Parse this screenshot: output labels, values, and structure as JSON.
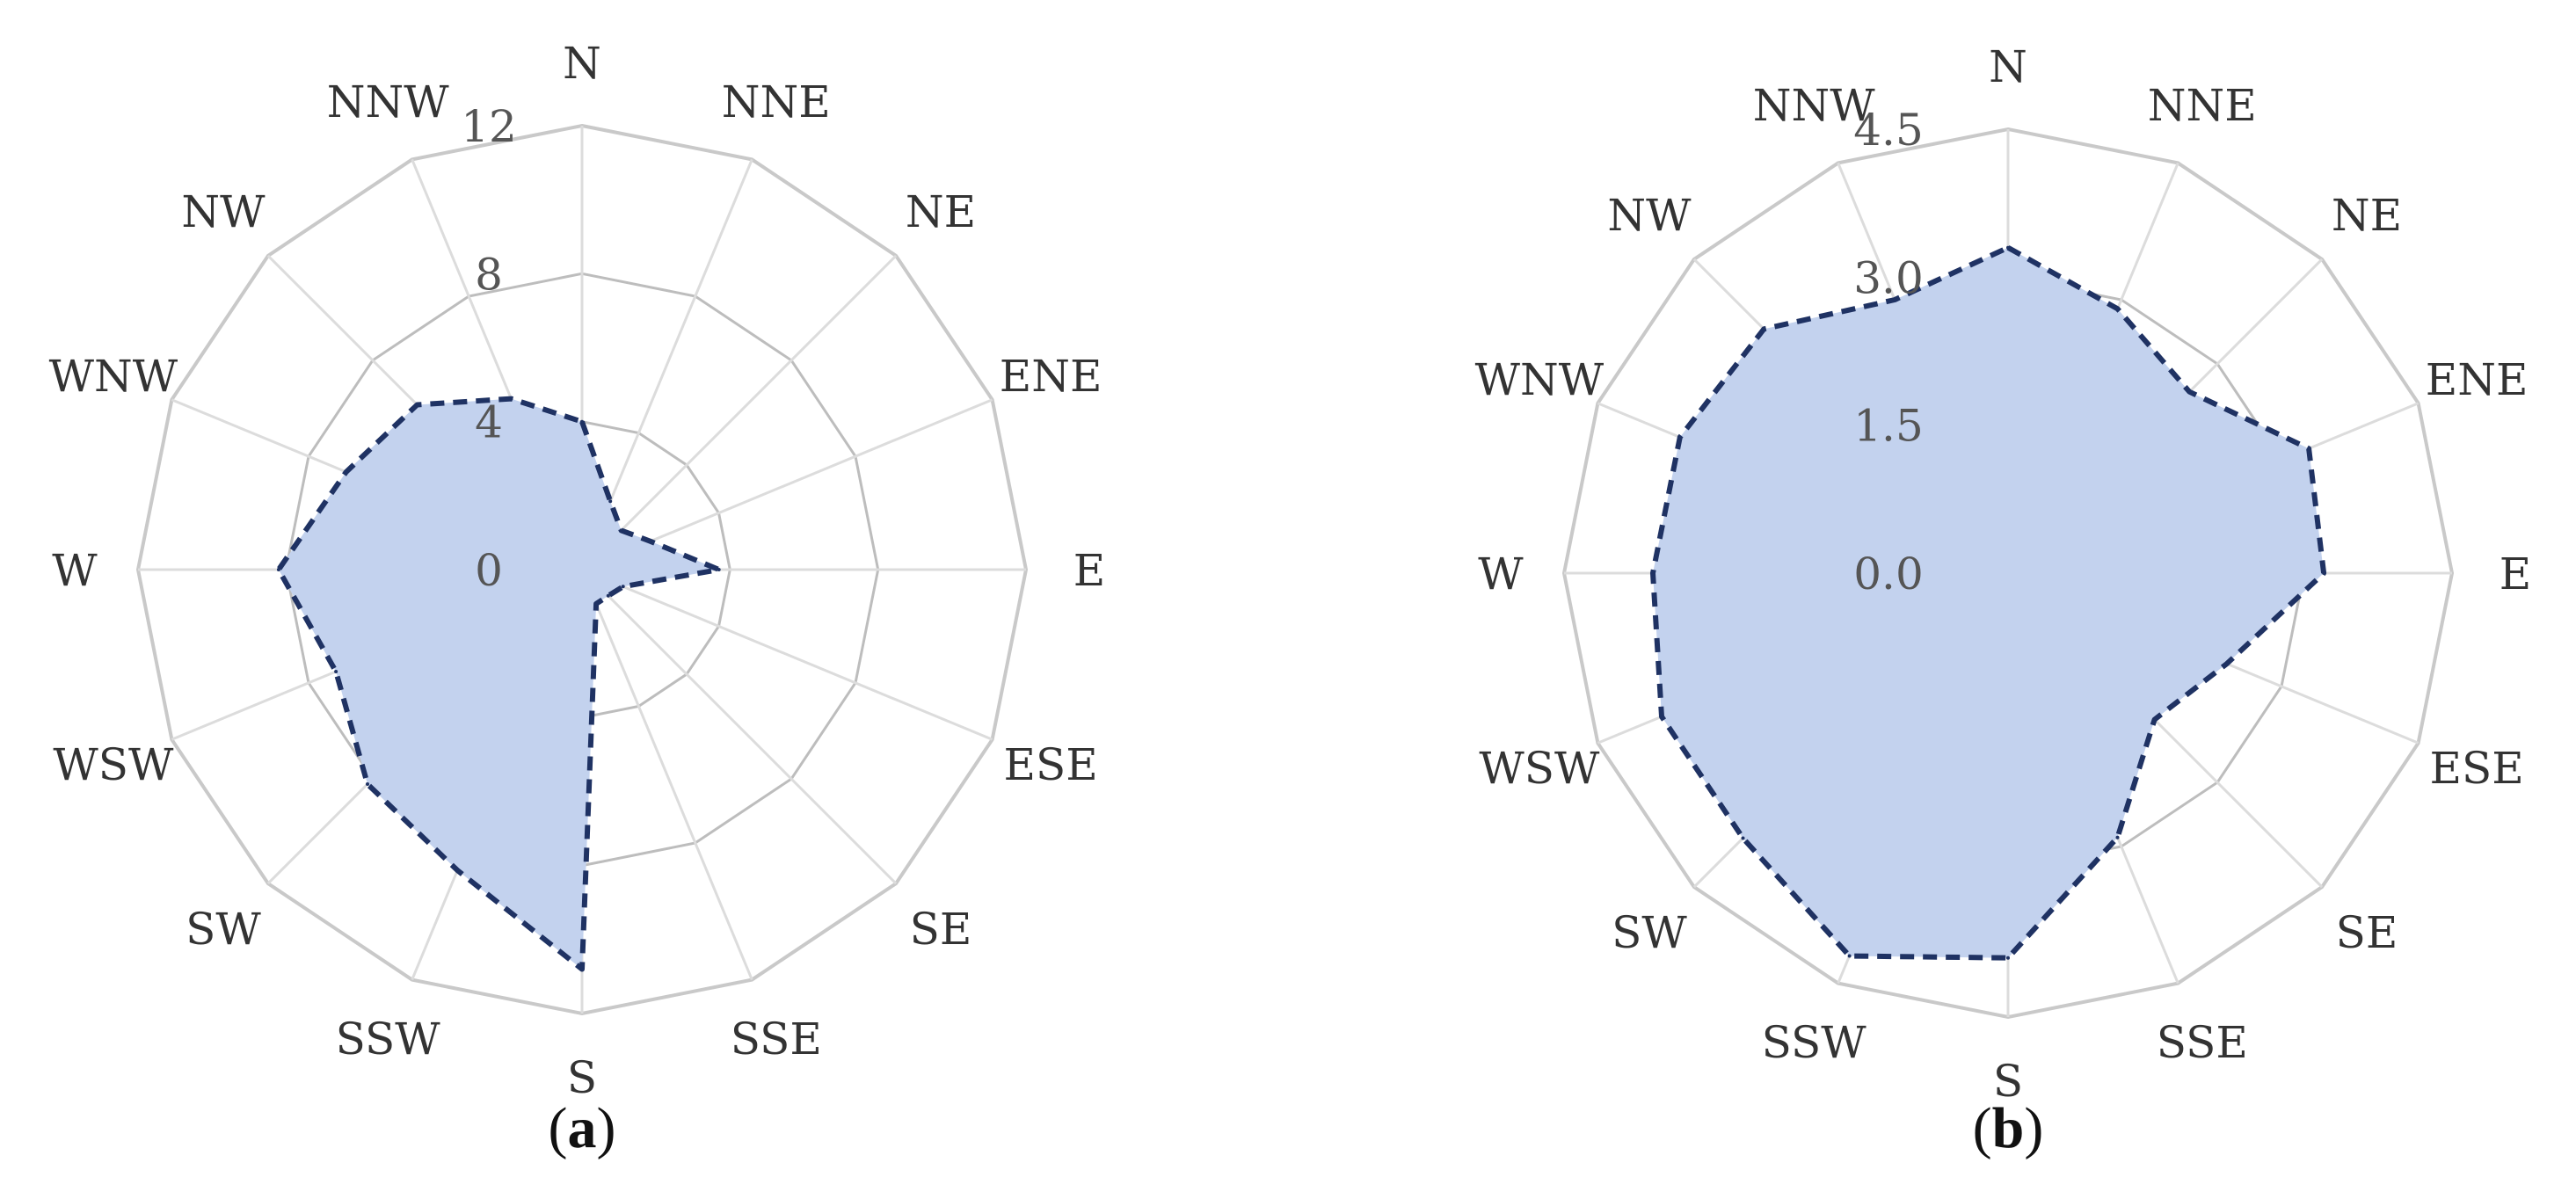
{
  "chart_data": [
    {
      "type": "radar",
      "panel_label": "a",
      "categories": [
        "N",
        "NNE",
        "NE",
        "ENE",
        "E",
        "ESE",
        "SE",
        "SSE",
        "S",
        "SSW",
        "SW",
        "WSW",
        "W",
        "WNW",
        "NW",
        "NNW"
      ],
      "ticks": [
        "0",
        "4",
        "8",
        "12"
      ],
      "rmax": 12,
      "values": [
        4.0,
        2.0,
        1.5,
        2.0,
        3.7,
        1.2,
        1.0,
        1.0,
        10.8,
        8.8,
        8.2,
        7.2,
        8.2,
        6.9,
        6.3,
        5.0
      ],
      "colors": {
        "fill": "#c3d2ee",
        "stroke": "#1f3263"
      }
    },
    {
      "type": "radar",
      "panel_label": "b",
      "categories": [
        "N",
        "NNE",
        "NE",
        "ENE",
        "E",
        "ESE",
        "SE",
        "SSE",
        "S",
        "SSW",
        "SW",
        "WSW",
        "W",
        "WNW",
        "NW",
        "NNW"
      ],
      "ticks": [
        "0.0",
        "1.5",
        "3.0",
        "4.5"
      ],
      "rmax": 4.5,
      "values": [
        3.3,
        2.9,
        2.6,
        3.3,
        3.2,
        2.4,
        2.1,
        2.9,
        3.9,
        4.2,
        3.8,
        3.8,
        3.6,
        3.6,
        3.5,
        3.0
      ],
      "colors": {
        "fill": "#c3d2ee",
        "stroke": "#1f3263"
      }
    }
  ]
}
